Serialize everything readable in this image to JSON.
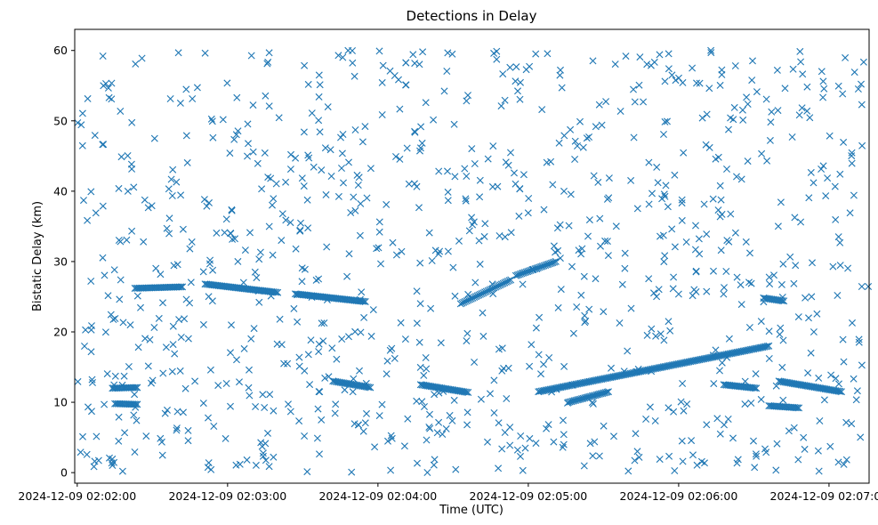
{
  "chart_data": {
    "type": "scatter",
    "title": "Detections in Delay",
    "xlabel": "Time (UTC)",
    "ylabel": "Bistatic Delay (km)",
    "marker": "x",
    "color": "#1f77b4",
    "grid": false,
    "x_tick_labels": [
      "2024-12-09 02:02:00",
      "2024-12-09 02:03:00",
      "2024-12-09 02:04:00",
      "2024-12-09 02:05:00",
      "2024-12-09 02:06:00",
      "2024-12-09 02:07:00"
    ],
    "y_ticks": [
      0,
      10,
      20,
      30,
      40,
      50,
      60
    ],
    "xlim": [
      "2024-12-09 02:01:59",
      "2024-12-09 02:07:16"
    ],
    "ylim": [
      -1.5,
      63
    ],
    "tracks": [
      {
        "points": [
          [
            "2024-12-09 02:02:14",
            12.0
          ],
          [
            "2024-12-09 02:02:24",
            12.1
          ]
        ]
      },
      {
        "points": [
          [
            "2024-12-09 02:02:15",
            9.8
          ],
          [
            "2024-12-09 02:02:24",
            9.7
          ]
        ]
      },
      {
        "points": [
          [
            "2024-12-09 02:02:23",
            26.2
          ],
          [
            "2024-12-09 02:02:42",
            26.4
          ]
        ]
      },
      {
        "points": [
          [
            "2024-12-09 02:02:51",
            26.8
          ],
          [
            "2024-12-09 02:03:20",
            25.6
          ]
        ]
      },
      {
        "points": [
          [
            "2024-12-09 02:03:27",
            25.4
          ],
          [
            "2024-12-09 02:03:55",
            24.3
          ]
        ]
      },
      {
        "points": [
          [
            "2024-12-09 02:04:17",
            12.5
          ],
          [
            "2024-12-09 02:04:36",
            11.4
          ]
        ]
      },
      {
        "points": [
          [
            "2024-12-09 02:04:33",
            24.0
          ],
          [
            "2024-12-09 02:04:53",
            27.4
          ]
        ]
      },
      {
        "points": [
          [
            "2024-12-09 02:04:55",
            28.0
          ],
          [
            "2024-12-09 02:05:11",
            30.0
          ]
        ]
      },
      {
        "points": [
          [
            "2024-12-09 02:05:04",
            11.5
          ],
          [
            "2024-12-09 02:06:36",
            18.0
          ]
        ]
      },
      {
        "points": [
          [
            "2024-12-09 02:06:34",
            24.8
          ],
          [
            "2024-12-09 02:06:42",
            24.4
          ]
        ]
      },
      {
        "points": [
          [
            "2024-12-09 02:06:40",
            13.0
          ],
          [
            "2024-12-09 02:07:05",
            11.5
          ]
        ]
      },
      {
        "points": [
          [
            "2024-12-09 02:06:18",
            12.5
          ],
          [
            "2024-12-09 02:06:31",
            12.0
          ]
        ]
      },
      {
        "points": [
          [
            "2024-12-09 02:06:36",
            9.5
          ],
          [
            "2024-12-09 02:06:48",
            9.2
          ]
        ]
      },
      {
        "points": [
          [
            "2024-12-09 02:03:42",
            13.0
          ],
          [
            "2024-12-09 02:03:57",
            12.1
          ]
        ]
      },
      {
        "points": [
          [
            "2024-12-09 02:05:16",
            10.0
          ],
          [
            "2024-12-09 02:05:32",
            11.5
          ]
        ]
      }
    ],
    "clutter_points": 980,
    "clutter_seed": 20241209,
    "clutter_y_range": [
      0,
      60
    ]
  }
}
